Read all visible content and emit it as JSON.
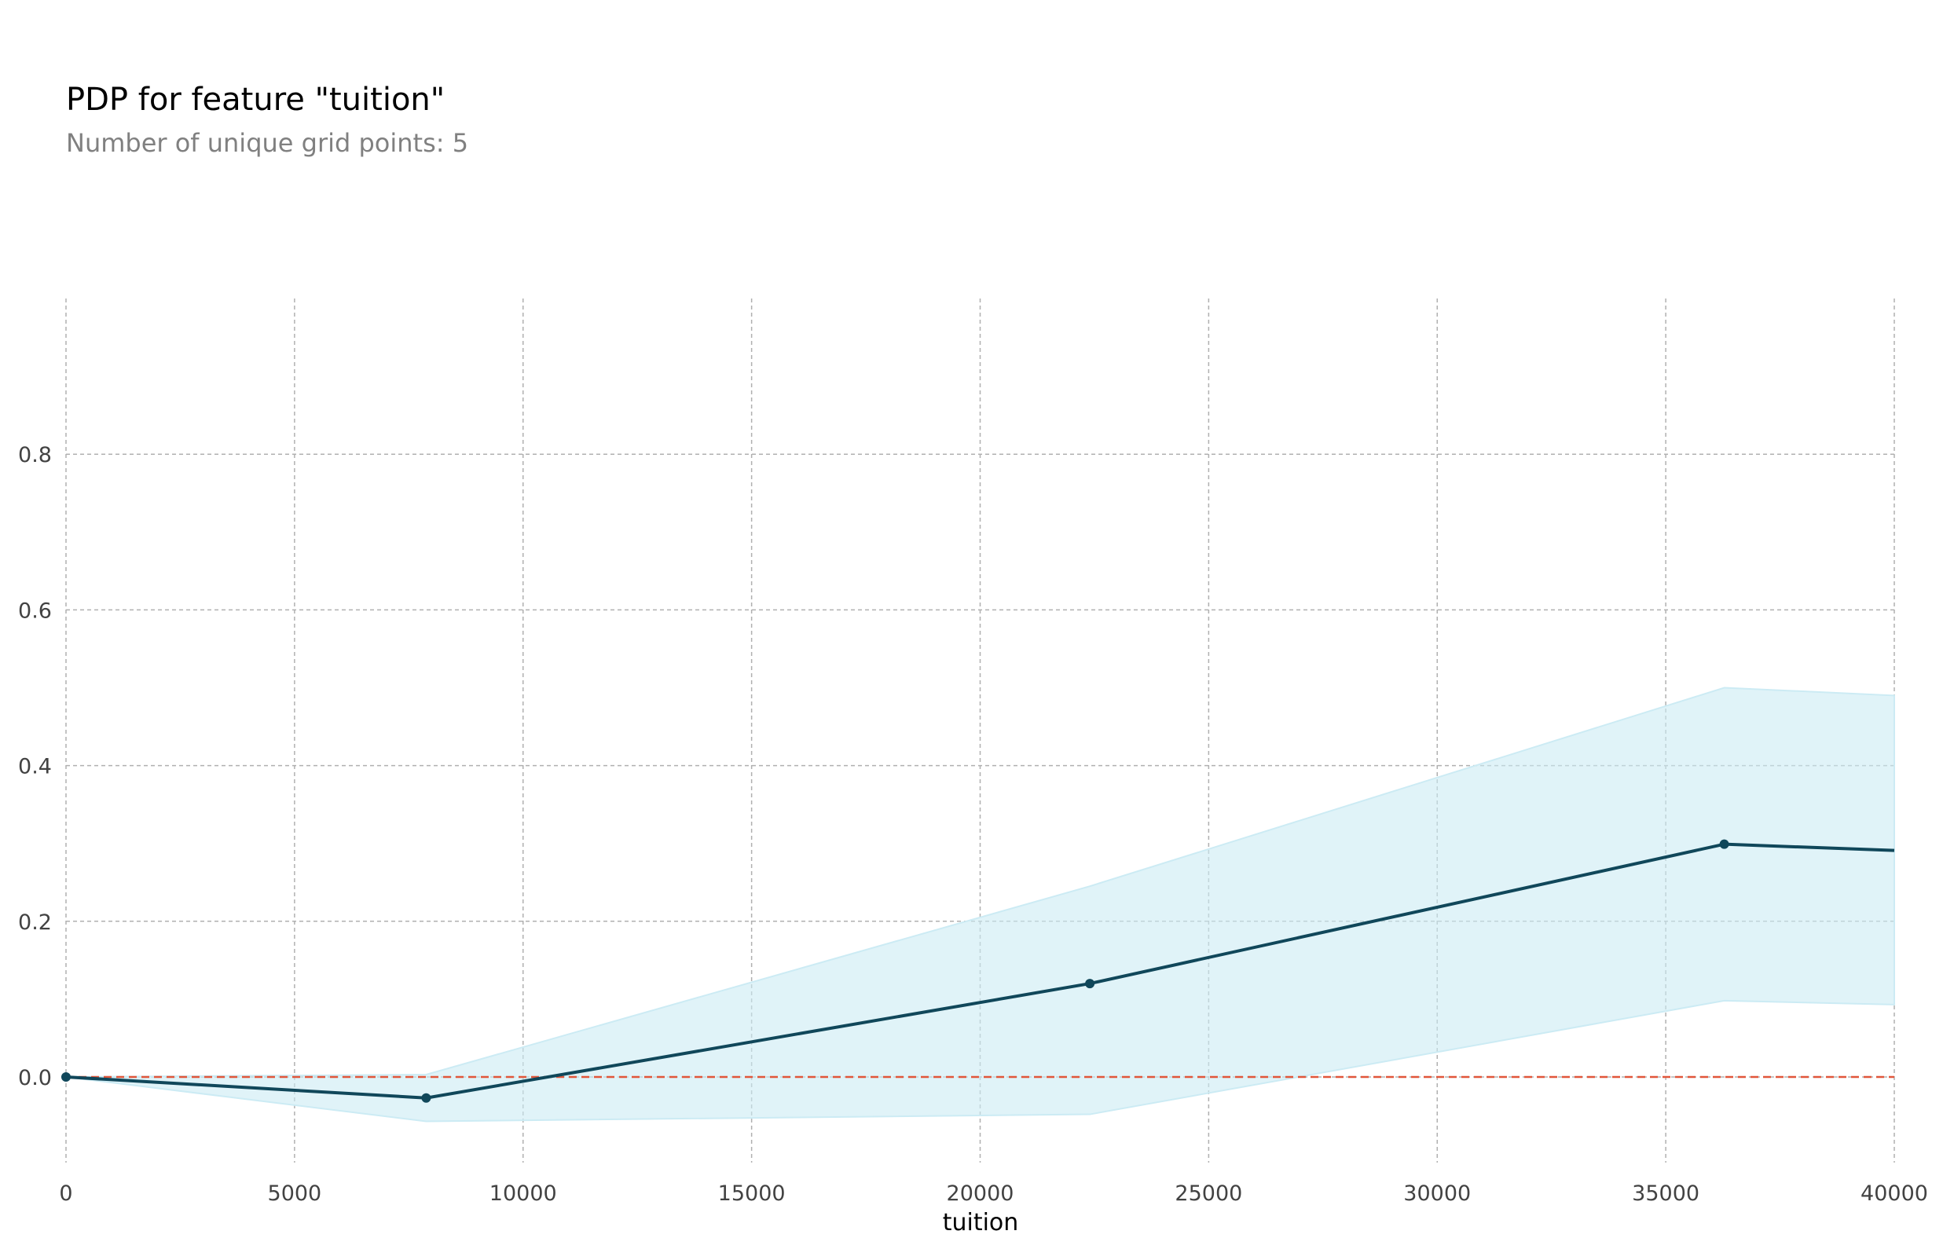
{
  "chart_data": {
    "type": "line",
    "title": "PDP for feature \"tuition\"",
    "subtitle": "Number of unique grid points: 5",
    "xlabel": "tuition",
    "ylabel": "",
    "xlim": [
      0,
      40000
    ],
    "ylim": [
      -0.11,
      1.0
    ],
    "x_ticks": [
      0,
      5000,
      10000,
      15000,
      20000,
      25000,
      30000,
      35000,
      40000
    ],
    "x_tick_labels": [
      "0",
      "5000",
      "10000",
      "15000",
      "20000",
      "25000",
      "30000",
      "35000",
      "40000"
    ],
    "y_ticks": [
      0.0,
      0.2,
      0.4,
      0.6,
      0.8
    ],
    "y_tick_labels": [
      "0.0",
      "0.2",
      "0.4",
      "0.6",
      "0.8"
    ],
    "grid": true,
    "series": [
      {
        "x": [
          0,
          7880,
          22400,
          36280,
          40000
        ],
        "values": [
          0.0,
          -0.027,
          0.12,
          0.299,
          0.291
        ],
        "lower": [
          0.0,
          -0.057,
          -0.048,
          0.098,
          0.093
        ],
        "upper": [
          0.0,
          0.003,
          0.245,
          0.5,
          0.49
        ],
        "markers": [
          true,
          true,
          true,
          true,
          false
        ],
        "color": "#10475a",
        "band_color": "#ccebf4"
      }
    ],
    "reference_line": {
      "y": 0.0,
      "color": "#e1563a",
      "style": "dashed"
    }
  }
}
